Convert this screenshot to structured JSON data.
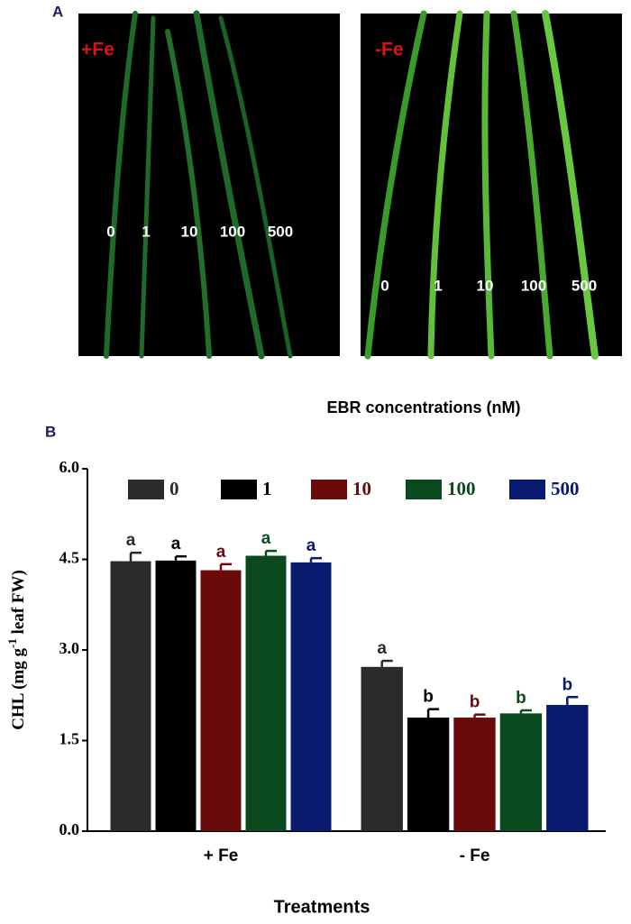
{
  "panel_a": {
    "label": "A",
    "left": {
      "title": "+Fe",
      "doses": [
        "0",
        "1",
        "10",
        "100",
        "500"
      ]
    },
    "right": {
      "title": "-Fe",
      "doses": [
        "0",
        "1",
        "10",
        "100",
        "500"
      ]
    },
    "caption": "EBR concentrations (nM)"
  },
  "chart_data": {
    "type": "bar",
    "panel_label": "B",
    "xlabel": "Treatments",
    "ylabel": [
      "CHL (mg g",
      "-1",
      " leaf FW)"
    ],
    "categories": [
      "+ Fe",
      "- Fe"
    ],
    "ylim": [
      0,
      6
    ],
    "yticks": [
      {
        "value": 0,
        "label": "0.0"
      },
      {
        "value": 1.5,
        "label": "1.5"
      },
      {
        "value": 3,
        "label": "3.0"
      },
      {
        "value": 4.5,
        "label": "4.5"
      },
      {
        "value": 6,
        "label": "6.0"
      }
    ],
    "series": [
      {
        "name": "0",
        "color": "#2b2b2b",
        "values": [
          4.47,
          2.72
        ],
        "errors": [
          0.14,
          0.1
        ],
        "labels": [
          "a",
          "a"
        ]
      },
      {
        "name": "1",
        "color": "#000000",
        "values": [
          4.48,
          1.88
        ],
        "errors": [
          0.07,
          0.14
        ],
        "labels": [
          "a",
          "b"
        ]
      },
      {
        "name": "10",
        "color": "#6b0a0a",
        "values": [
          4.32,
          1.88
        ],
        "errors": [
          0.1,
          0.05
        ],
        "labels": [
          "a",
          "b"
        ]
      },
      {
        "name": "100",
        "color": "#0b4a1e",
        "values": [
          4.56,
          1.95
        ],
        "errors": [
          0.08,
          0.05
        ],
        "labels": [
          "a",
          "b"
        ]
      },
      {
        "name": "500",
        "color": "#0a1a6e",
        "values": [
          4.45,
          2.09
        ],
        "errors": [
          0.07,
          0.13
        ],
        "labels": [
          "a",
          "b"
        ]
      }
    ]
  }
}
